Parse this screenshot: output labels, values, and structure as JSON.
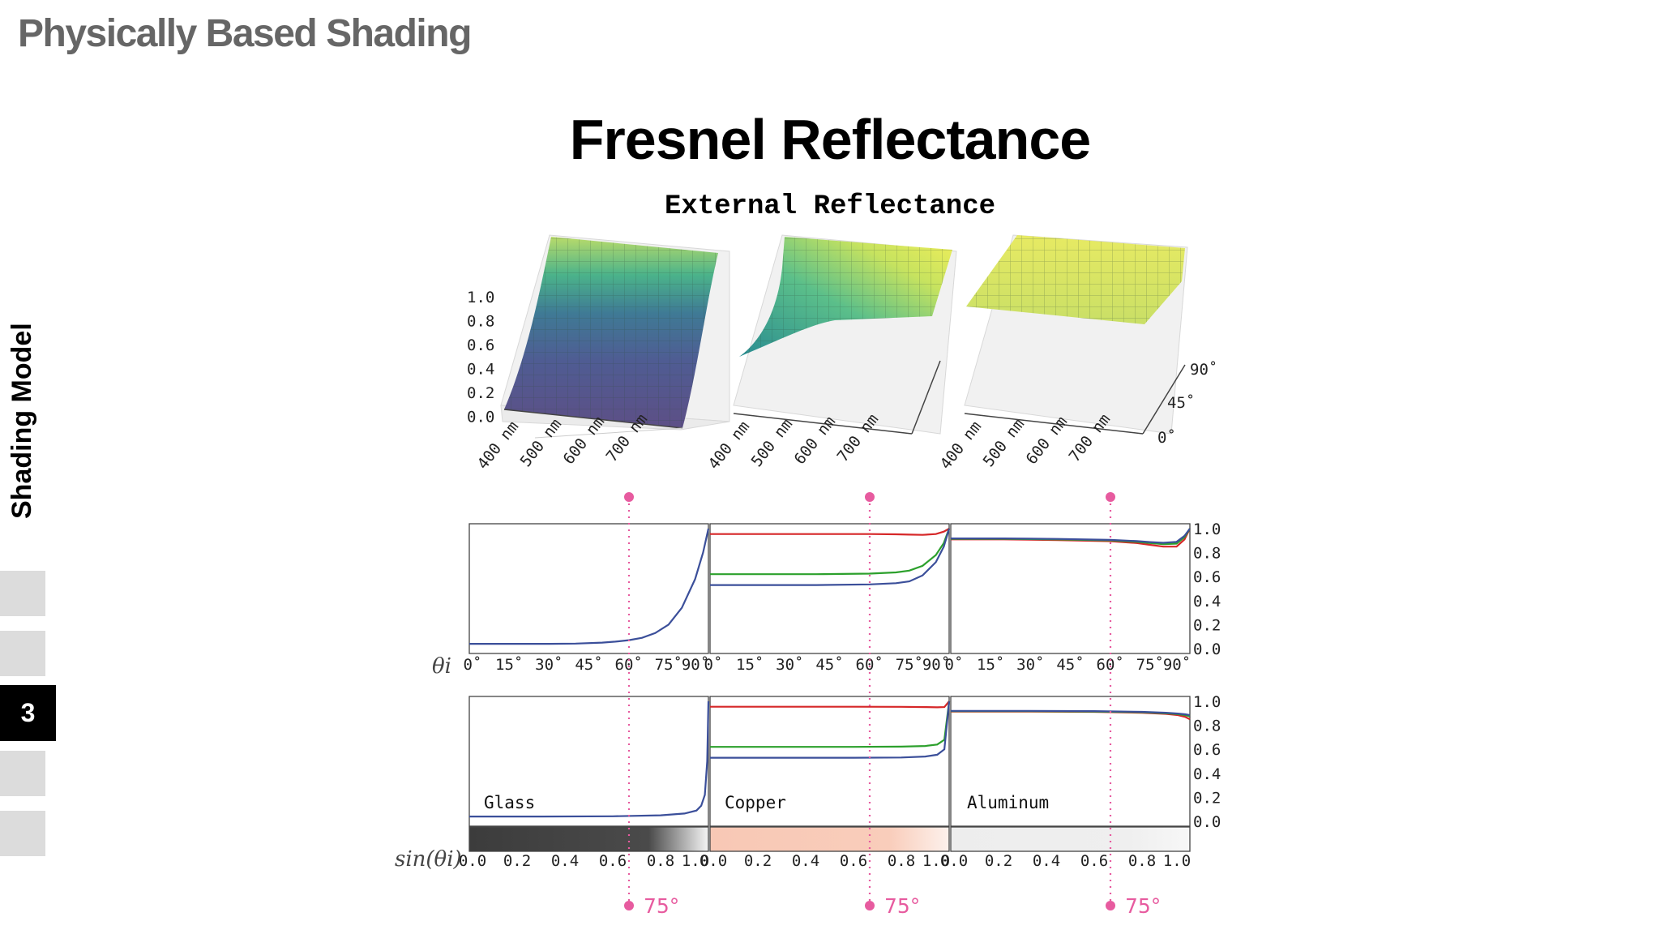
{
  "header": {
    "deck_title": "Physically Based Shading"
  },
  "sidebar": {
    "section_label": "Shading Model",
    "nav": [
      {
        "label": ""
      },
      {
        "label": ""
      },
      {
        "label": "3",
        "active": true
      },
      {
        "label": ""
      },
      {
        "label": ""
      }
    ]
  },
  "slide": {
    "title": "Fresnel Reflectance",
    "figure_title": "External Reflectance"
  },
  "surface_axes": {
    "z_ticks": [
      "1.0",
      "0.8",
      "0.6",
      "0.4",
      "0.2",
      "0.0"
    ],
    "wavelength_ticks": [
      "400 nm",
      "500 nm",
      "600 nm",
      "700 nm"
    ],
    "angle_ticks": [
      "90˚",
      "45˚",
      "0˚"
    ]
  },
  "colors": {
    "red": "#d62728",
    "green": "#2ca02c",
    "blue": "#3b4f9a",
    "marker": "#e75b9f"
  },
  "marker": {
    "angle_label": "75°"
  },
  "chart_data": [
    {
      "type": "line",
      "row": "angle",
      "x_axis_label": "θi",
      "x_ticks": [
        "0˚",
        "15˚",
        "30˚",
        "45˚",
        "60˚",
        "75˚",
        "90˚"
      ],
      "y_ticks": [
        "1.0",
        "0.8",
        "0.6",
        "0.4",
        "0.2",
        "0.0"
      ],
      "xlim": [
        0,
        90
      ],
      "ylim": [
        0,
        1
      ],
      "panels": [
        {
          "material": "Glass",
          "series": [
            {
              "color": "#3b4f9a",
              "x": [
                0,
                10,
                20,
                30,
                40,
                50,
                55,
                60,
                65,
                70,
                75,
                80,
                85,
                88,
                90
              ],
              "y": [
                0.04,
                0.04,
                0.04,
                0.04,
                0.042,
                0.05,
                0.058,
                0.07,
                0.09,
                0.13,
                0.2,
                0.34,
                0.58,
                0.8,
                1.0
              ]
            }
          ]
        },
        {
          "material": "Copper",
          "series": [
            {
              "color": "#d62728",
              "x": [
                0,
                20,
                40,
                60,
                70,
                75,
                80,
                85,
                88,
                90
              ],
              "y": [
                0.955,
                0.955,
                0.955,
                0.955,
                0.953,
                0.95,
                0.948,
                0.955,
                0.975,
                1.0
              ]
            },
            {
              "color": "#2ca02c",
              "x": [
                0,
                20,
                40,
                60,
                70,
                75,
                80,
                85,
                88,
                90
              ],
              "y": [
                0.62,
                0.62,
                0.62,
                0.625,
                0.635,
                0.65,
                0.69,
                0.78,
                0.88,
                1.0
              ]
            },
            {
              "color": "#3b4f9a",
              "x": [
                0,
                20,
                40,
                60,
                70,
                75,
                80,
                85,
                88,
                90
              ],
              "y": [
                0.53,
                0.53,
                0.53,
                0.535,
                0.545,
                0.56,
                0.61,
                0.72,
                0.85,
                1.0
              ]
            }
          ]
        },
        {
          "material": "Aluminum",
          "series": [
            {
              "color": "#d62728",
              "x": [
                0,
                20,
                40,
                60,
                70,
                75,
                80,
                85,
                88,
                90
              ],
              "y": [
                0.91,
                0.91,
                0.905,
                0.895,
                0.88,
                0.865,
                0.85,
                0.85,
                0.91,
                1.0
              ]
            },
            {
              "color": "#2ca02c",
              "x": [
                0,
                20,
                40,
                60,
                70,
                75,
                80,
                85,
                88,
                90
              ],
              "y": [
                0.915,
                0.915,
                0.91,
                0.902,
                0.89,
                0.88,
                0.87,
                0.875,
                0.93,
                1.0
              ]
            },
            {
              "color": "#3b4f9a",
              "x": [
                0,
                20,
                40,
                60,
                70,
                75,
                80,
                85,
                88,
                90
              ],
              "y": [
                0.918,
                0.918,
                0.914,
                0.906,
                0.896,
                0.888,
                0.882,
                0.89,
                0.94,
                1.0
              ]
            }
          ]
        }
      ]
    },
    {
      "type": "line",
      "row": "sine",
      "x_axis_label": "sin(θi)",
      "x_ticks": [
        "0.0",
        "0.2",
        "0.4",
        "0.6",
        "0.8",
        "1.0"
      ],
      "y_ticks": [
        "1.0",
        "0.8",
        "0.6",
        "0.4",
        "0.2",
        "0.0"
      ],
      "xlim": [
        0,
        1
      ],
      "ylim": [
        0,
        1
      ],
      "panels": [
        {
          "material": "Glass",
          "swatch": [
            "#3c3c3c",
            "#4a4a4a",
            "#f5f5f5"
          ],
          "series": [
            {
              "color": "#3b4f9a",
              "x": [
                0,
                0.3,
                0.6,
                0.8,
                0.9,
                0.95,
                0.97,
                0.985,
                0.995,
                1.0
              ],
              "y": [
                0.04,
                0.04,
                0.042,
                0.05,
                0.065,
                0.09,
                0.13,
                0.22,
                0.5,
                1.0
              ]
            }
          ]
        },
        {
          "material": "Copper",
          "swatch": [
            "#f8c8b5",
            "#f9cdbb",
            "#fdf1ec"
          ],
          "series": [
            {
              "color": "#d62728",
              "x": [
                0,
                0.3,
                0.6,
                0.8,
                0.9,
                0.95,
                0.98,
                1.0
              ],
              "y": [
                0.955,
                0.955,
                0.955,
                0.954,
                0.952,
                0.95,
                0.952,
                1.0
              ]
            },
            {
              "color": "#2ca02c",
              "x": [
                0,
                0.3,
                0.6,
                0.8,
                0.9,
                0.95,
                0.98,
                1.0
              ],
              "y": [
                0.62,
                0.62,
                0.62,
                0.622,
                0.628,
                0.64,
                0.68,
                1.0
              ]
            },
            {
              "color": "#3b4f9a",
              "x": [
                0,
                0.3,
                0.6,
                0.8,
                0.9,
                0.95,
                0.98,
                1.0
              ],
              "y": [
                0.53,
                0.53,
                0.53,
                0.532,
                0.54,
                0.555,
                0.6,
                1.0
              ]
            }
          ]
        },
        {
          "material": "Aluminum",
          "swatch": [
            "#ededed",
            "#efefef",
            "#f7f7f7"
          ],
          "series": [
            {
              "color": "#d62728",
              "x": [
                0,
                0.3,
                0.6,
                0.8,
                0.9,
                0.95,
                0.98,
                1.0
              ],
              "y": [
                0.915,
                0.915,
                0.912,
                0.905,
                0.895,
                0.885,
                0.87,
                0.85
              ]
            },
            {
              "color": "#2ca02c",
              "x": [
                0,
                0.3,
                0.6,
                0.8,
                0.9,
                0.95,
                0.98,
                1.0
              ],
              "y": [
                0.918,
                0.918,
                0.915,
                0.909,
                0.9,
                0.893,
                0.885,
                0.875
              ]
            },
            {
              "color": "#3b4f9a",
              "x": [
                0,
                0.3,
                0.6,
                0.8,
                0.9,
                0.95,
                0.98,
                1.0
              ],
              "y": [
                0.92,
                0.92,
                0.918,
                0.912,
                0.905,
                0.898,
                0.892,
                0.885
              ]
            }
          ]
        }
      ]
    }
  ]
}
